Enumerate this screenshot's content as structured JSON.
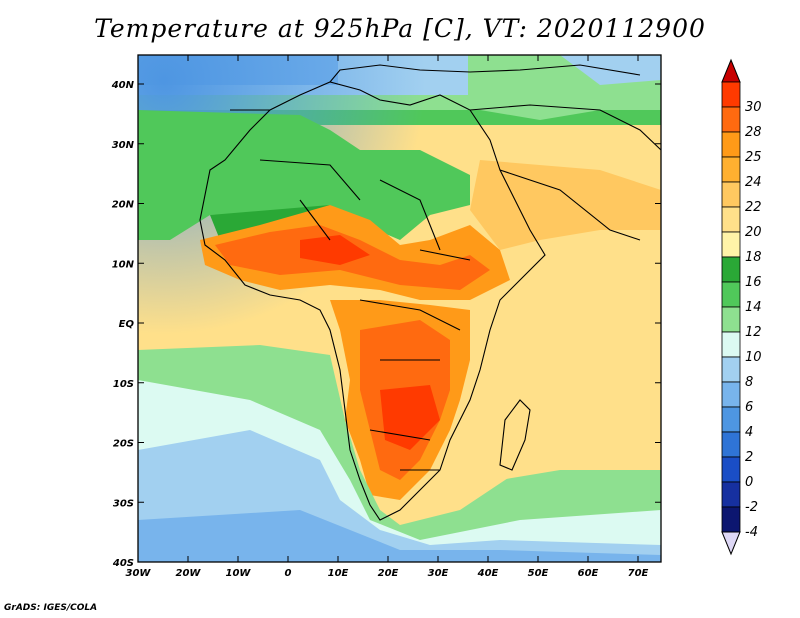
{
  "title": "Temperature at 925hPa [C], VT: 2020112900",
  "credit": "GrADS: IGES/COLA",
  "map": {
    "lon_range": [
      -30,
      75
    ],
    "lat_range": [
      -40,
      45
    ],
    "x_ticks": [
      "30W",
      "20W",
      "10W",
      "0",
      "10E",
      "20E",
      "30E",
      "40E",
      "50E",
      "60E",
      "70E"
    ],
    "y_ticks": [
      "40N",
      "30N",
      "20N",
      "10N",
      "EQ",
      "10S",
      "20S",
      "30S",
      "40S"
    ]
  },
  "colorbar": {
    "labels": [
      "30",
      "28",
      "25",
      "24",
      "22",
      "20",
      "18",
      "16",
      "14",
      "12",
      "10",
      "8",
      "6",
      "4",
      "2",
      "0",
      "-2",
      "-4"
    ],
    "colors": [
      "#ff3a00",
      "#ff6a10",
      "#ff9a18",
      "#ffb030",
      "#ffc860",
      "#ffe08a",
      "#fff3a8",
      "#2aa836",
      "#50c85a",
      "#8ee090",
      "#dcfaf2",
      "#a2d0f0",
      "#78b4ec",
      "#4e96e2",
      "#2f74d6",
      "#1a4ec6",
      "#1630a0",
      "#0c1670"
    ],
    "top_color": "#c80000",
    "bottom_color": "#ded8f6"
  }
}
